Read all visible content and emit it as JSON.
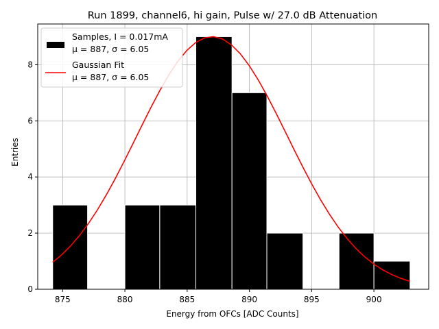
{
  "chart_data": {
    "type": "bar",
    "title": "Run 1899, channel6, hi gain, Pulse w/ 27.0 dB Attenuation",
    "xlabel": "Energy from OFCs [ADC Counts]",
    "ylabel": "Entries",
    "xlim": [
      873,
      904.4
    ],
    "ylim": [
      0,
      9.45
    ],
    "grid": true,
    "x_ticks": [
      875,
      880,
      885,
      890,
      895,
      900
    ],
    "y_ticks": [
      0,
      2,
      4,
      6,
      8
    ],
    "histogram": {
      "name": "Samples",
      "color": "#000000",
      "bins": [
        {
          "x0": 874.2,
          "x1": 877.0,
          "count": 3
        },
        {
          "x0": 877.0,
          "x1": 880.0,
          "count": 0
        },
        {
          "x0": 880.0,
          "x1": 882.8,
          "count": 3
        },
        {
          "x0": 882.8,
          "x1": 885.7,
          "count": 3
        },
        {
          "x0": 885.7,
          "x1": 888.6,
          "count": 9
        },
        {
          "x0": 888.6,
          "x1": 891.4,
          "count": 7
        },
        {
          "x0": 891.4,
          "x1": 894.3,
          "count": 2
        },
        {
          "x0": 894.3,
          "x1": 897.2,
          "count": 0
        },
        {
          "x0": 897.2,
          "x1": 900.0,
          "count": 2
        },
        {
          "x0": 900.0,
          "x1": 902.9,
          "count": 1
        }
      ]
    },
    "fit": {
      "name": "Gaussian Fit",
      "color": "#ff0000",
      "mu": 887,
      "sigma": 6.05,
      "amplitude": 9.0,
      "x_start": 874.2,
      "x_end": 902.9
    },
    "legend": {
      "placement": "upper-left",
      "entries": [
        {
          "line1": "Samples, I = 0.017mA",
          "line2": "μ = 887, σ = 6.05"
        },
        {
          "line1": "Gaussian Fit",
          "line2": "μ = 887, σ = 6.05"
        }
      ]
    }
  }
}
